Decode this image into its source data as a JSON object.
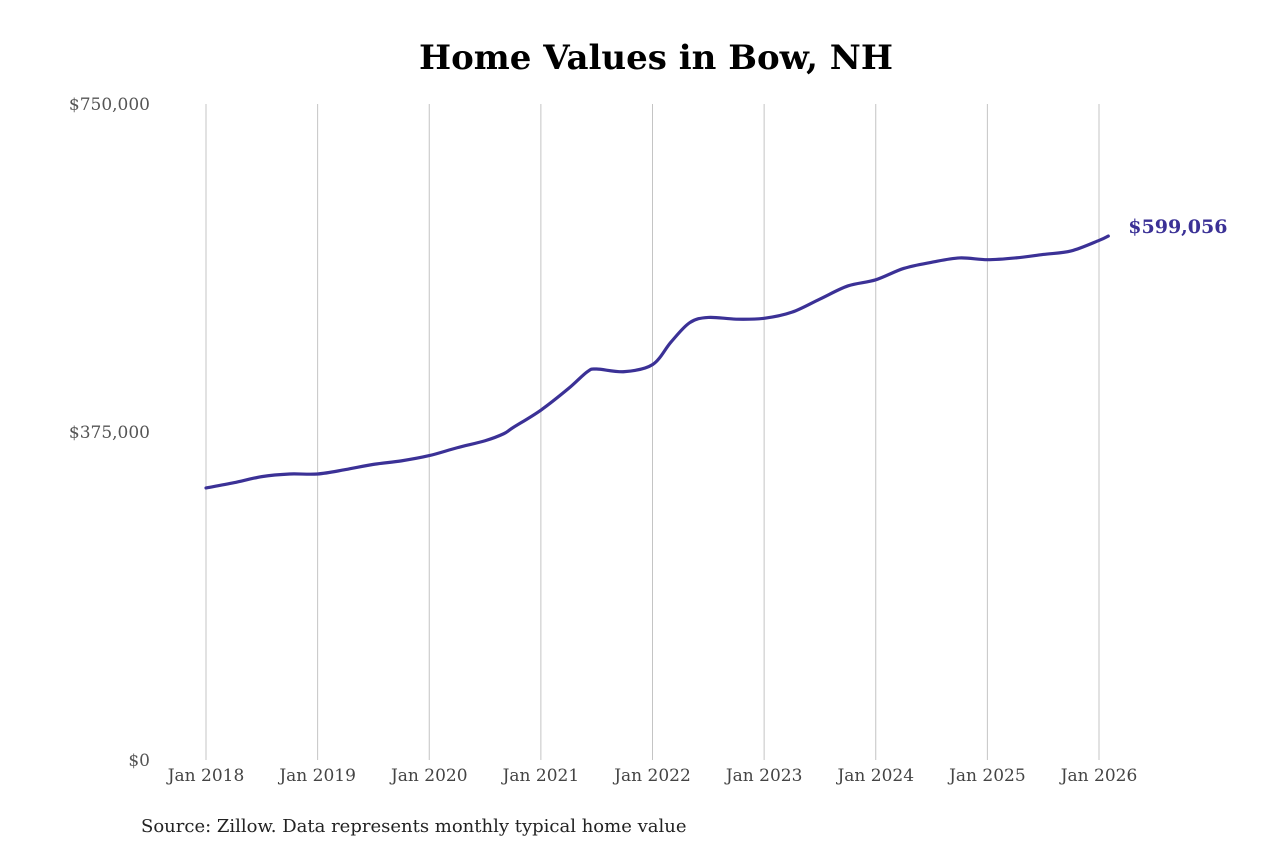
{
  "chart_data": {
    "type": "line",
    "title": "Home Values in Bow, NH",
    "source": "Source: Zillow. Data represents monthly typical home value",
    "ylim": [
      0,
      750000
    ],
    "y_ticks": [
      0,
      375000,
      750000
    ],
    "y_tick_labels": [
      "$0",
      "$375,000",
      "$750,000"
    ],
    "xlim": [
      "2018-01",
      "2026-01"
    ],
    "x_tick_labels": [
      "Jan 2018",
      "Jan 2019",
      "Jan 2020",
      "Jan 2021",
      "Jan 2022",
      "Jan 2023",
      "Jan 2024",
      "Jan 2025",
      "Jan 2026"
    ],
    "grid": "vertical",
    "line_color": "#3b3196",
    "end_label": "$599,056",
    "series": [
      {
        "x": [
          "2018-01",
          "2018-04",
          "2018-07",
          "2018-10",
          "2019-01",
          "2019-04",
          "2019-07",
          "2019-10",
          "2020-01",
          "2020-04",
          "2020-07",
          "2020-09",
          "2020-10",
          "2021-01",
          "2021-04",
          "2021-06",
          "2021-07",
          "2021-10",
          "2022-01",
          "2022-03",
          "2022-05",
          "2022-07",
          "2022-10",
          "2023-01",
          "2023-04",
          "2023-07",
          "2023-10",
          "2024-01",
          "2024-04",
          "2024-07",
          "2024-10",
          "2025-01",
          "2025-04",
          "2025-07",
          "2025-10",
          "2026-01",
          "2026-02"
        ],
        "values": [
          311000,
          317000,
          324000,
          327000,
          327000,
          332000,
          338000,
          342000,
          348000,
          357000,
          365000,
          373000,
          380000,
          400000,
          425000,
          444000,
          447000,
          444000,
          452000,
          478000,
          500000,
          506000,
          504000,
          505000,
          512000,
          527000,
          542000,
          549000,
          562000,
          569000,
          574000,
          572000,
          574000,
          578000,
          582000,
          594000,
          599056
        ]
      }
    ]
  }
}
